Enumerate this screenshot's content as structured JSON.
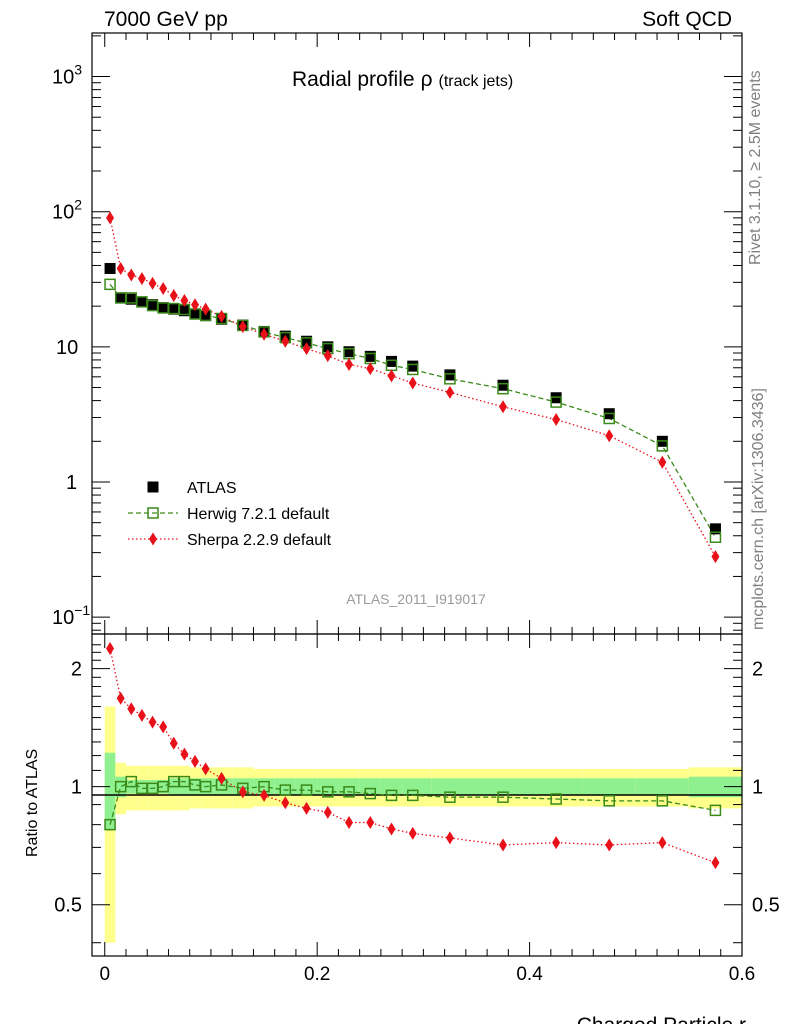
{
  "header": {
    "left": "7000 GeV pp",
    "right": "Soft QCD"
  },
  "side_labels": {
    "rivet": "Rivet 3.1.10, ≥ 2.5M events",
    "mcplots": "mcplots.cern.ch [arXiv:1306.3436]"
  },
  "chart_data": {
    "type": "scatter",
    "title_main": "Radial profile",
    "title_symbol": "ρ",
    "title_sub": "(track jets)",
    "analysis_label": "ATLAS_2011_I919017",
    "xlabel": "Charged Particle r",
    "ratio_ylabel": "Ratio to ATLAS",
    "xlim": [
      -0.012,
      0.6
    ],
    "top_ylim": [
      0.075,
      2100
    ],
    "top_yscale": "log",
    "ratio_ylim": [
      0.37,
      2.45
    ],
    "ratio_yscale": "log",
    "x_ticks": [
      0,
      0.2,
      0.4,
      0.6
    ],
    "x_tick_labels": [
      "0",
      "0.2",
      "0.4",
      "0.6"
    ],
    "top_y_ticks": [
      {
        "value": 0.1,
        "base": "10",
        "exp": "−1"
      },
      {
        "value": 1,
        "base": "1",
        "exp": ""
      },
      {
        "value": 10,
        "base": "10",
        "exp": ""
      },
      {
        "value": 100,
        "base": "10",
        "exp": "2"
      },
      {
        "value": 1000,
        "base": "10",
        "exp": "3"
      }
    ],
    "ratio_y_ticks": [
      {
        "value": 0.5,
        "label": "0.5"
      },
      {
        "value": 1,
        "label": "1"
      },
      {
        "value": 2,
        "label": "2"
      }
    ],
    "legend_position": "left, lower part of top panel",
    "x": [
      0.005,
      0.015,
      0.025,
      0.035,
      0.045,
      0.055,
      0.065,
      0.075,
      0.085,
      0.095,
      0.11,
      0.13,
      0.15,
      0.17,
      0.19,
      0.21,
      0.23,
      0.25,
      0.27,
      0.29,
      0.325,
      0.375,
      0.425,
      0.475,
      0.525,
      0.575
    ],
    "series": [
      {
        "name": "ATLAS",
        "color": "#000000",
        "marker": "filled-square",
        "values": [
          38,
          23,
          22.5,
          21.5,
          20.5,
          19.5,
          19,
          18.5,
          17.5,
          17,
          16,
          14.5,
          13,
          12,
          11,
          10,
          9.2,
          8.5,
          7.8,
          7.2,
          6.2,
          5.2,
          4.2,
          3.2,
          2.0,
          0.45
        ],
        "band_stat": [
          0.22,
          0.06,
          0.04,
          0.04,
          0.04,
          0.04,
          0.05,
          0.05,
          0.05,
          0.05,
          0.05,
          0.05,
          0.05,
          0.05,
          0.05,
          0.05,
          0.05,
          0.05,
          0.05,
          0.05,
          0.05,
          0.05,
          0.05,
          0.05,
          0.05,
          0.06
        ],
        "band_total": [
          0.6,
          0.15,
          0.13,
          0.13,
          0.13,
          0.13,
          0.13,
          0.13,
          0.12,
          0.12,
          0.12,
          0.12,
          0.11,
          0.11,
          0.11,
          0.11,
          0.11,
          0.11,
          0.11,
          0.11,
          0.11,
          0.11,
          0.11,
          0.11,
          0.11,
          0.12
        ]
      },
      {
        "name": "Herwig 7.2.1 default",
        "color": "#3a8a1a",
        "marker": "open-square",
        "line": "dashed",
        "values": [
          29,
          23,
          23,
          21.5,
          20.2,
          19.4,
          19.2,
          18.9,
          17.5,
          17.1,
          16.2,
          14.4,
          12.9,
          11.7,
          10.7,
          9.7,
          8.9,
          8.2,
          7.3,
          6.8,
          5.8,
          4.9,
          3.9,
          2.95,
          1.85,
          0.39
        ],
        "ratio": [
          0.8,
          1.0,
          1.03,
          0.99,
          0.99,
          1.0,
          1.03,
          1.03,
          1.01,
          1.0,
          1.01,
          0.99,
          1.0,
          0.98,
          0.98,
          0.97,
          0.97,
          0.96,
          0.95,
          0.95,
          0.94,
          0.94,
          0.93,
          0.92,
          0.92,
          0.87
        ]
      },
      {
        "name": "Sherpa 2.2.9 default",
        "color": "#e8111a",
        "marker": "filled-diamond",
        "line": "dotted",
        "values": [
          90,
          38,
          34,
          32,
          29.5,
          27,
          24,
          22,
          20.5,
          19,
          16.8,
          14.1,
          12.4,
          11,
          9.7,
          8.6,
          7.4,
          6.9,
          6.1,
          5.4,
          4.6,
          3.6,
          2.9,
          2.2,
          1.4,
          0.28
        ],
        "ratio": [
          2.25,
          1.68,
          1.58,
          1.52,
          1.46,
          1.42,
          1.29,
          1.21,
          1.16,
          1.11,
          1.05,
          0.97,
          0.95,
          0.91,
          0.88,
          0.86,
          0.81,
          0.81,
          0.78,
          0.76,
          0.74,
          0.71,
          0.72,
          0.71,
          0.72,
          0.64
        ]
      }
    ]
  }
}
